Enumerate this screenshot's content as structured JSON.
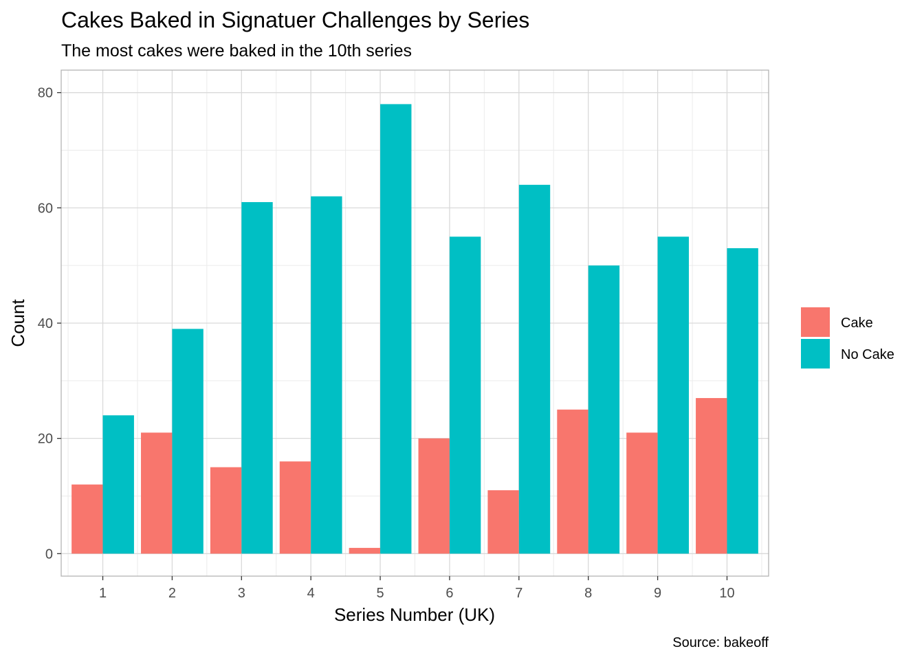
{
  "chart_data": {
    "type": "bar",
    "title": "Cakes Baked in Signatuer Challenges by Series",
    "subtitle": "The most cakes were baked in the 10th series",
    "xlabel": "Series Number (UK)",
    "ylabel": "Count",
    "caption": "Source: bakeoff",
    "categories": [
      "1",
      "2",
      "3",
      "4",
      "5",
      "6",
      "7",
      "8",
      "9",
      "10"
    ],
    "series": [
      {
        "name": "Cake",
        "color": "#F8766D",
        "values": [
          12,
          21,
          15,
          16,
          1,
          20,
          11,
          25,
          21,
          27
        ]
      },
      {
        "name": "No Cake",
        "color": "#00BFC4",
        "values": [
          24,
          39,
          61,
          62,
          78,
          55,
          64,
          50,
          55,
          53
        ]
      }
    ],
    "ylim": [
      0,
      80
    ],
    "yticks": [
      0,
      20,
      40,
      60,
      80
    ],
    "grid": true,
    "legend_position": "right",
    "bar_layout": "dodge"
  }
}
